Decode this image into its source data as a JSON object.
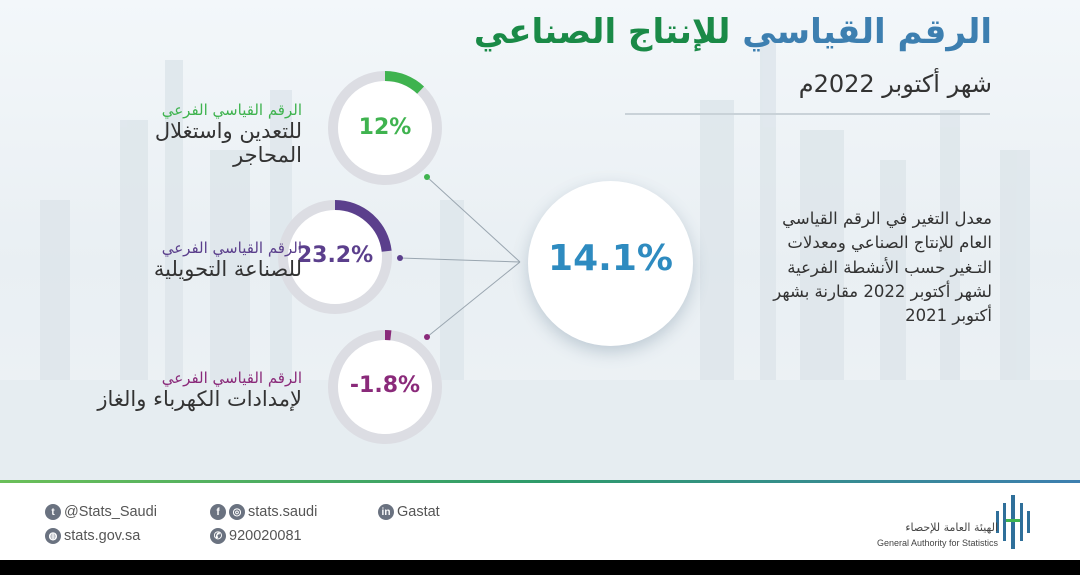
{
  "header": {
    "title_part1": "الرقم القياسي",
    "title_part2": "للإنتاج الصناعي",
    "subtitle": "شهر أكتوبر 2022م"
  },
  "center": {
    "value": "14.1%",
    "description": "معدل التغير في الرقم القياسي العام للإنتاج الصناعي ومعدلات التـغير حسب الأنشطة الفرعية لشهر أكتوبر 2022 مقارنة بشهر أكتوبر 2021"
  },
  "sub_indices": [
    {
      "label_small": "الرقم القياسي الفرعي",
      "label_line1": "للتعدين واستغلال",
      "label_line2": "المحاجر",
      "value": "12%",
      "progress": 0.12,
      "color": "#3fb34f"
    },
    {
      "label_small": "الرقم القياسي الفرعي",
      "label_line1": "للصناعة التحويلية",
      "label_line2": "",
      "value": "23.2%",
      "progress": 0.232,
      "color": "#5b3f8c"
    },
    {
      "label_small": "الرقم القياسي الفرعي",
      "label_line1": "لإمدادات الكهرباء والغاز",
      "label_line2": "",
      "value": "-1.8%",
      "progress": 0.018,
      "color": "#8a2a7a"
    }
  ],
  "footer": {
    "twitter": "@Stats_Saudi",
    "website": "stats.gov.sa",
    "social": "stats.saudi",
    "phone": "920020081",
    "linkedin": "Gastat",
    "logo_ar": "الهيئة العامة للإحصاء",
    "logo_en": "General Authority for Statistics"
  },
  "icons": [
    "twitter-icon",
    "globe-icon",
    "facebook-icon",
    "instagram-icon",
    "phone-icon",
    "linkedin-icon",
    "gastat-logo-icon"
  ]
}
